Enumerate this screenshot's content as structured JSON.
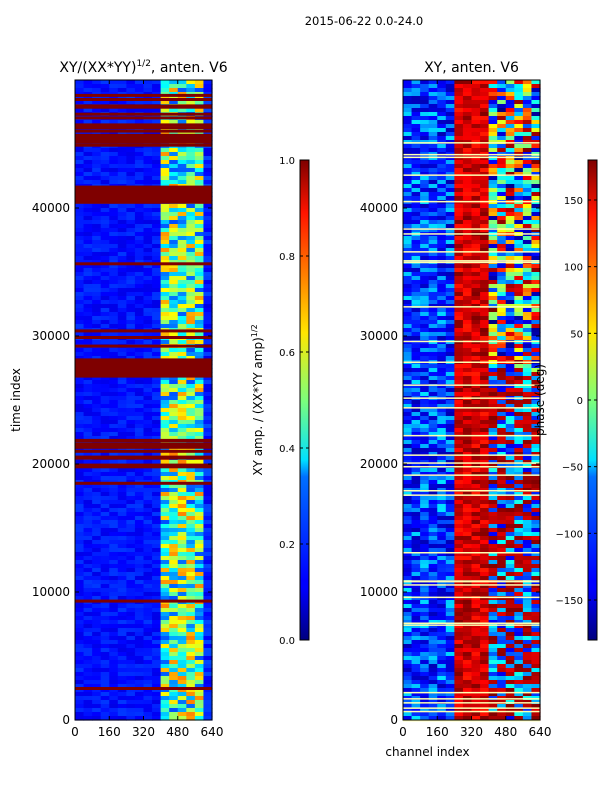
{
  "figure": {
    "suptitle": "2015-06-22 0.0-24.0"
  },
  "chart_data": [
    {
      "type": "heatmap",
      "title": "XY/(XX*YY)",
      "title_sup": "1/2",
      "title_suffix": ", anten. V6",
      "xlabel": "",
      "ylabel": "time index",
      "xlim": [
        0,
        640
      ],
      "ylim": [
        0,
        50000
      ],
      "xticks": [
        0,
        160,
        320,
        480,
        640
      ],
      "yticks": [
        0,
        10000,
        20000,
        30000,
        40000
      ],
      "colormap": "jet",
      "colorbar": {
        "label": "XY amp. / (XX*YY amp)",
        "label_sup": "1/2",
        "range": [
          0.0,
          1.0
        ],
        "ticks": [
          "0.0",
          "0.2",
          "0.4",
          "0.6",
          "0.8",
          "1.0"
        ],
        "tick_values": [
          0.0,
          0.2,
          0.4,
          0.6,
          0.8,
          1.0
        ]
      }
    },
    {
      "type": "heatmap",
      "title": "XY, anten. V6",
      "xlabel": "channel index",
      "ylabel": "",
      "xlim": [
        0,
        640
      ],
      "ylim": [
        0,
        50000
      ],
      "xticks": [
        0,
        160,
        320,
        480,
        640
      ],
      "yticks": [
        0,
        10000,
        20000,
        30000,
        40000
      ],
      "colormap": "jet",
      "colorbar": {
        "label": "phase (deg)",
        "range": [
          -180,
          180
        ],
        "ticks": [
          "−150",
          "−100",
          "−50",
          "0",
          "50",
          "100",
          "150"
        ],
        "tick_values": [
          -150,
          -100,
          -50,
          0,
          50,
          100,
          150
        ]
      }
    }
  ]
}
